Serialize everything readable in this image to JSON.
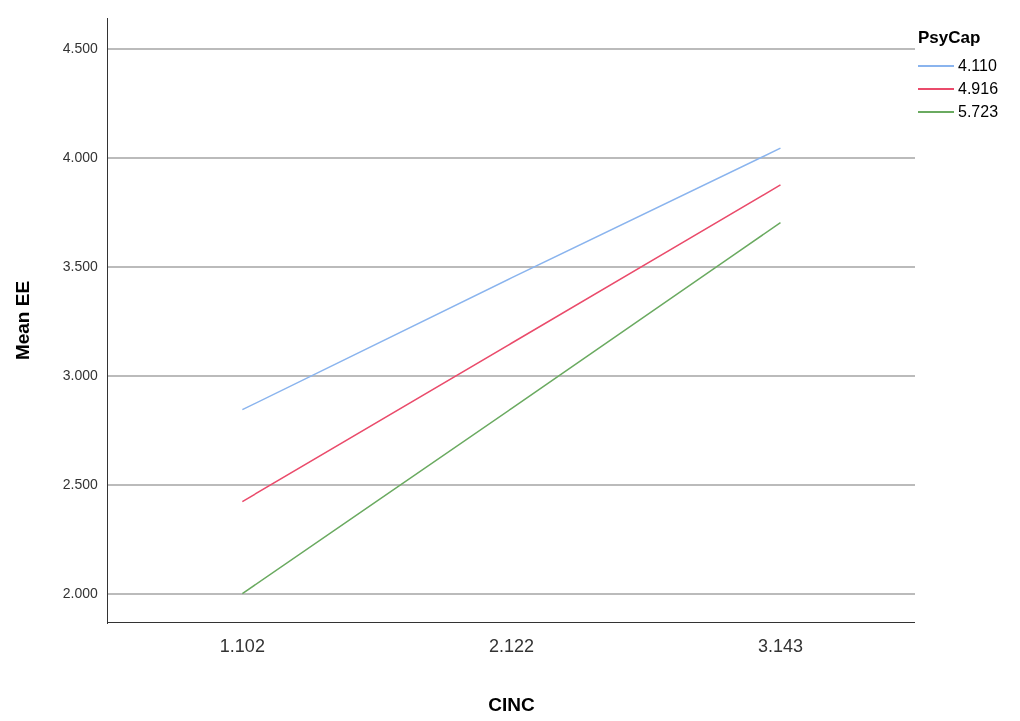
{
  "chart_data": {
    "type": "line",
    "xlabel": "CINC",
    "ylabel": "Mean EE",
    "legend_title": "PsyCap",
    "categories": [
      "1.102",
      "2.122",
      "3.143"
    ],
    "series": [
      {
        "name": "4.110",
        "color": "#8ab4ee",
        "values": [
          2.845,
          3.45,
          4.046
        ]
      },
      {
        "name": "4.916",
        "color": "#ea4b6b",
        "values": [
          2.423,
          3.15,
          3.877
        ]
      },
      {
        "name": "5.723",
        "color": "#6aaa60",
        "values": [
          2.0,
          2.85,
          3.704
        ]
      }
    ],
    "ylim": [
      1.867,
      4.642
    ],
    "yticks": [
      {
        "value": 2,
        "label": "2.000"
      },
      {
        "value": 2.5,
        "label": "2.500"
      },
      {
        "value": 3,
        "label": "3.000"
      },
      {
        "value": 3.5,
        "label": "3.500"
      },
      {
        "value": 4,
        "label": "4.000"
      },
      {
        "value": 4.5,
        "label": "4.500"
      }
    ],
    "grid": "y",
    "legend": "top right",
    "marker": "none",
    "line_style": "solid"
  }
}
